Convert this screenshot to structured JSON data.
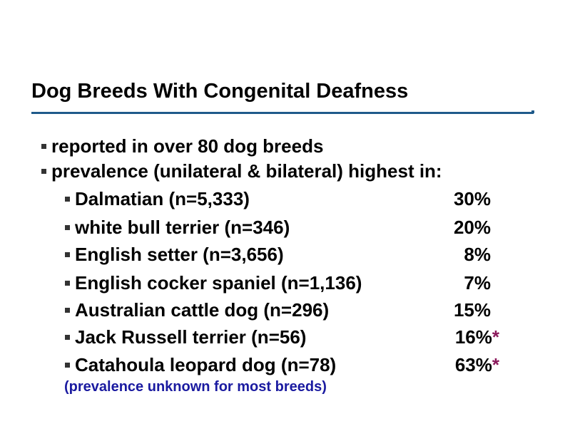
{
  "title": "Dog Breeds With Congenital Deafness",
  "bullets": [
    "reported in over 80 dog breeds",
    "prevalence (unilateral & bilateral) highest in:"
  ],
  "breeds": [
    {
      "name": "Dalmatian (n=5,333)",
      "pct": "30%",
      "star": ""
    },
    {
      "name": "white bull terrier (n=346)",
      "pct": "20%",
      "star": ""
    },
    {
      "name": "English setter (n=3,656)",
      "pct": "8%",
      "star": ""
    },
    {
      "name": "English cocker spaniel (n=1,136)",
      "pct": "7%",
      "star": ""
    },
    {
      "name": "Australian cattle dog (n=296)",
      "pct": "15%",
      "star": ""
    },
    {
      "name": "Jack Russell terrier (n=56)",
      "pct": "16%",
      "star": "*"
    },
    {
      "name": "Catahoula leopard dog (n=78)",
      "pct": "63%",
      "star": "*"
    }
  ],
  "note": "(prevalence unknown for most breeds)"
}
